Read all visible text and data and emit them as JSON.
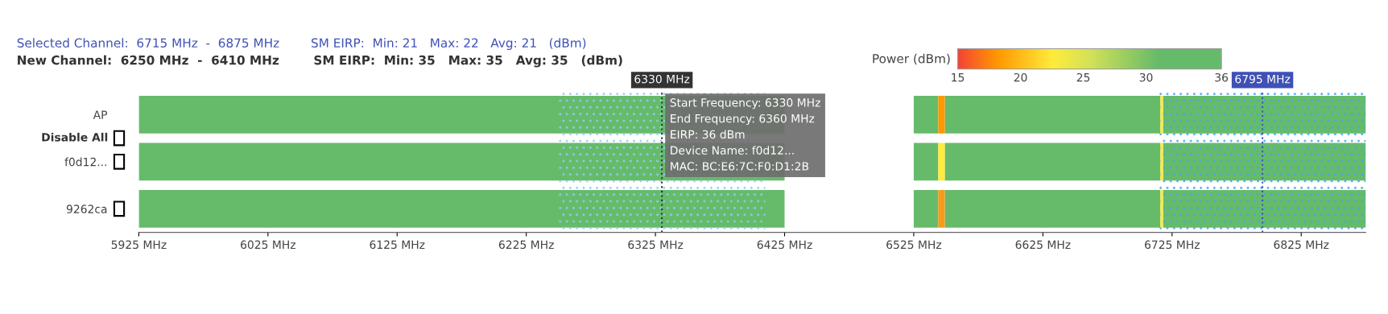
{
  "chart_data": {
    "type": "bar",
    "orientation": "horizontal",
    "categories": [
      "AP",
      "f0d12...",
      "9262ca"
    ],
    "series": [
      {
        "color": "#66bb6a",
        "base": [
          5925,
          5925,
          5925
        ],
        "values": [
          500,
          500,
          500
        ]
      },
      {
        "color": "#66bb6a",
        "base": [
          6525,
          6525,
          6525
        ],
        "values": [
          19,
          19,
          19
        ]
      },
      {
        "colors": [
          "#ff9800",
          "#ffeb3b",
          "#fb9a1a"
        ],
        "base": [
          6544,
          6544,
          6544
        ],
        "values": [
          5,
          5,
          5
        ]
      },
      {
        "color": "#66bb6a",
        "base": [
          6549,
          6549,
          6549
        ],
        "values": [
          167,
          167,
          167
        ]
      },
      {
        "color": "#ffeb3b",
        "base": [
          6716,
          6716,
          6716
        ],
        "values": [
          2,
          2,
          2
        ]
      },
      {
        "color": "#66bb6a",
        "base": [
          6718,
          6718,
          6718
        ],
        "values": [
          157,
          157,
          157
        ]
      }
    ],
    "xlim": [
      5925,
      6875
    ],
    "xticks": [
      {
        "value": 5925,
        "label": "5925 MHz"
      },
      {
        "value": 6025,
        "label": "6025 MHz"
      },
      {
        "value": 6125,
        "label": "6125 MHz"
      },
      {
        "value": 6225,
        "label": "6225 MHz"
      },
      {
        "value": 6325,
        "label": "6325 MHz"
      },
      {
        "value": 6425,
        "label": "6425 MHz"
      },
      {
        "value": 6525,
        "label": "6525 MHz"
      },
      {
        "value": 6625,
        "label": "6625 MHz"
      },
      {
        "value": 6725,
        "label": "6725 MHz"
      },
      {
        "value": 6825,
        "label": "6825 MHz"
      }
    ],
    "clabel": "Power (dBm)",
    "clim": [
      15,
      36
    ],
    "cticks": [
      15,
      20,
      25,
      30,
      36
    ],
    "bands": [
      {
        "axis": "x",
        "from": 6250,
        "to": 6410,
        "color": "#90caf9"
      },
      {
        "axis": "x",
        "from": 6715,
        "to": 6875,
        "color": "#42a5f5"
      }
    ],
    "ref_lines": [
      {
        "axis": "x",
        "value": 6330,
        "label": "6330 MHz",
        "color": "#333333",
        "line_style": "dotted"
      },
      {
        "axis": "x",
        "value": 6795,
        "label": "6795 MHz",
        "color": "#3f51b5",
        "line_style": "dotted"
      }
    ],
    "annotations": [
      "Selected Channel:  6715 MHz  -  6875 MHz        SM EIRP:  Min: 21   Max: 22   Avg: 21   (dBm)",
      "New Channel:  6250 MHz  -  6410 MHz        SM EIRP:  Min: 35   Max: 35   Avg: 35   (dBm)",
      "Disable All",
      {
        "text": "Start Frequency: 6330 MHz\nEnd Frequency: 6360 MHz\nEIRP: 36 dBm\nDevice Name: f0d12...\nMAC: BC:E6:7C:F0:D1:2B",
        "x": 6330,
        "y": "f0d12..."
      }
    ],
    "grid": false
  }
}
